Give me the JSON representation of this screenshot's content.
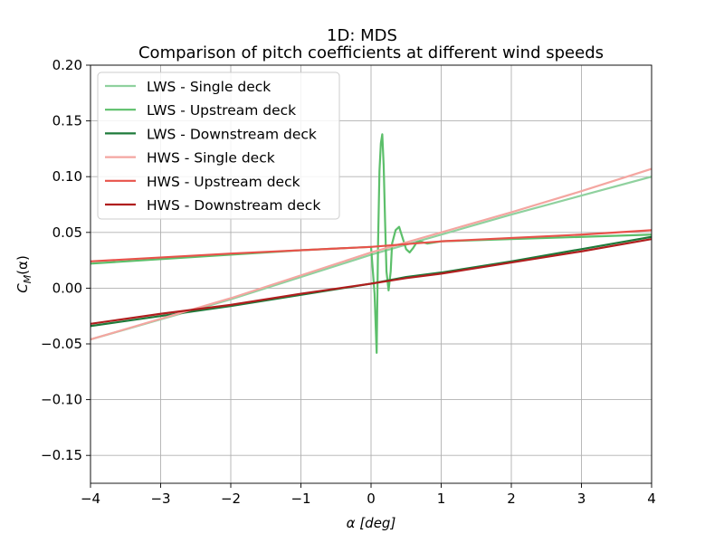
{
  "chart_data": {
    "type": "line",
    "title": "1D: MDS",
    "subtitle": "Comparison of pitch coefficients at different wind speeds",
    "xlabel": "α [deg]",
    "ylabel": "C_M(α)",
    "ylabel_main": "C",
    "ylabel_sub": "M",
    "ylabel_arg": "(α)",
    "xlim": [
      -4,
      4
    ],
    "ylim": [
      -0.175,
      0.2
    ],
    "xticks": [
      -4,
      -3,
      -2,
      -1,
      0,
      1,
      2,
      3,
      4
    ],
    "xtick_labels": [
      "−4",
      "−3",
      "−2",
      "−1",
      "0",
      "1",
      "2",
      "3",
      "4"
    ],
    "yticks": [
      -0.15,
      -0.1,
      -0.05,
      0.0,
      0.05,
      0.1,
      0.15,
      0.2
    ],
    "ytick_labels": [
      "−0.15",
      "−0.10",
      "−0.05",
      "0.00",
      "0.05",
      "0.10",
      "0.15",
      "0.20"
    ],
    "grid": true,
    "legend_position": "top-left",
    "series": [
      {
        "name": "LWS - Single deck",
        "color": "#8fd19e",
        "x": [
          -4,
          -2,
          0,
          2,
          4
        ],
        "y": [
          -0.046,
          -0.01,
          0.03,
          0.066,
          0.1
        ]
      },
      {
        "name": "LWS -  Upstream deck",
        "color": "#5cbf6a",
        "x": [
          -4,
          -2,
          -1,
          0,
          0.05,
          0.08,
          0.1,
          0.12,
          0.14,
          0.16,
          0.18,
          0.2,
          0.22,
          0.25,
          0.28,
          0.3,
          0.35,
          0.4,
          0.45,
          0.5,
          0.55,
          0.6,
          0.65,
          0.7,
          0.8,
          0.9,
          1,
          2,
          3,
          4
        ],
        "y": [
          0.022,
          0.03,
          0.034,
          0.037,
          -0.005,
          -0.058,
          0.04,
          0.105,
          0.13,
          0.138,
          0.11,
          0.06,
          0.015,
          -0.002,
          0.015,
          0.04,
          0.052,
          0.055,
          0.045,
          0.035,
          0.032,
          0.036,
          0.041,
          0.042,
          0.04,
          0.041,
          0.042,
          0.044,
          0.046,
          0.048
        ]
      },
      {
        "name": "LWS - Downstream deck",
        "color": "#1e7a3a",
        "x": [
          -4,
          -3,
          -2,
          -1,
          0,
          0.5,
          1,
          2,
          3,
          4
        ],
        "y": [
          -0.034,
          -0.025,
          -0.016,
          -0.006,
          0.004,
          0.01,
          0.014,
          0.024,
          0.035,
          0.046
        ]
      },
      {
        "name": "HWS - Single deck",
        "color": "#f4a6a1",
        "x": [
          -4,
          -2,
          0,
          1,
          2,
          3,
          4
        ],
        "y": [
          -0.046,
          -0.009,
          0.032,
          0.05,
          0.068,
          0.087,
          0.107
        ]
      },
      {
        "name": "HWS - Upstream deck",
        "color": "#e8524a",
        "x": [
          -4,
          -2,
          0,
          1,
          2,
          3,
          4
        ],
        "y": [
          0.024,
          0.031,
          0.037,
          0.042,
          0.045,
          0.048,
          0.052
        ]
      },
      {
        "name": "HWS - Downstream deck",
        "color": "#b01e1e",
        "x": [
          -4,
          -3,
          -2,
          -1,
          0,
          0.5,
          1,
          2,
          3,
          4
        ],
        "y": [
          -0.032,
          -0.023,
          -0.015,
          -0.005,
          0.004,
          0.009,
          0.013,
          0.023,
          0.033,
          0.044
        ]
      }
    ]
  }
}
